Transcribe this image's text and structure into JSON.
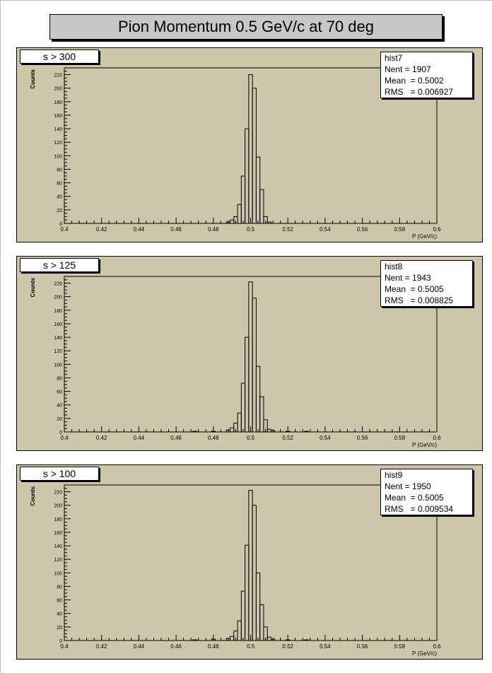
{
  "title": "Pion Momentum 0.5 GeV/c at 70 deg",
  "axis": {
    "xlabel": "P (GeV/c)",
    "ylabel": "Counts",
    "x_ticks": [
      "0.4",
      "0.42",
      "0.44",
      "0.46",
      "0.48",
      "0.5",
      "0.52",
      "0.54",
      "0.56",
      "0.58",
      "0.6"
    ],
    "y_ticks": [
      "0",
      "20",
      "40",
      "60",
      "80",
      "100",
      "120",
      "140",
      "160",
      "180",
      "200",
      "220"
    ]
  },
  "panels": [
    {
      "cut": "s > 300",
      "hist": "hist7",
      "nent": "Nent = 1907",
      "mean": "Mean  = 0.5002",
      "rms": "RMS   = 0.006927"
    },
    {
      "cut": "s > 125",
      "hist": "hist8",
      "nent": "Nent = 1943",
      "mean": "Mean  = 0.5005",
      "rms": "RMS   = 0.008825"
    },
    {
      "cut": "s > 100",
      "hist": "hist9",
      "nent": "Nent = 1950",
      "mean": "Mean  = 0.5005",
      "rms": "RMS   = 0.009534"
    }
  ],
  "chart_data": [
    {
      "type": "bar",
      "title": "s > 300",
      "xlabel": "P (GeV/c)",
      "ylabel": "Counts",
      "xlim": [
        0.4,
        0.6
      ],
      "ylim": [
        0,
        230
      ],
      "bin_width": 0.002,
      "series": [
        {
          "name": "hist7",
          "x": [
            0.488,
            0.49,
            0.492,
            0.494,
            0.496,
            0.498,
            0.5,
            0.502,
            0.504,
            0.506,
            0.508,
            0.51
          ],
          "values": [
            2,
            5,
            10,
            28,
            70,
            140,
            220,
            200,
            98,
            50,
            10,
            2
          ]
        }
      ]
    },
    {
      "type": "bar",
      "title": "s > 125",
      "xlabel": "P (GeV/c)",
      "ylabel": "Counts",
      "xlim": [
        0.4,
        0.6
      ],
      "ylim": [
        0,
        230
      ],
      "bin_width": 0.002,
      "series": [
        {
          "name": "hist8",
          "x": [
            0.47,
            0.48,
            0.488,
            0.49,
            0.492,
            0.494,
            0.496,
            0.498,
            0.5,
            0.502,
            0.504,
            0.506,
            0.508,
            0.51,
            0.512,
            0.52,
            0.53
          ],
          "values": [
            1,
            1,
            3,
            6,
            13,
            28,
            72,
            140,
            222,
            198,
            97,
            52,
            18,
            4,
            2,
            1,
            1
          ]
        }
      ]
    },
    {
      "type": "bar",
      "title": "s > 100",
      "xlabel": "P (GeV/c)",
      "ylabel": "Counts",
      "xlim": [
        0.4,
        0.6
      ],
      "ylim": [
        0,
        230
      ],
      "bin_width": 0.002,
      "series": [
        {
          "name": "hist9",
          "x": [
            0.47,
            0.48,
            0.488,
            0.49,
            0.492,
            0.494,
            0.496,
            0.498,
            0.5,
            0.502,
            0.504,
            0.506,
            0.508,
            0.51,
            0.512,
            0.52,
            0.53
          ],
          "values": [
            1,
            2,
            3,
            6,
            14,
            29,
            73,
            141,
            222,
            200,
            100,
            53,
            20,
            5,
            2,
            1,
            1
          ]
        }
      ]
    }
  ]
}
